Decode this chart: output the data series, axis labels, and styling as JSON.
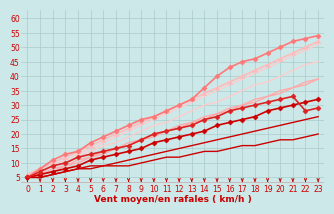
{
  "xlabel": "Vent moyen/en rafales ( km/h )",
  "background_color": "#cce8e8",
  "grid_color": "#aacccc",
  "text_color": "#cc0000",
  "x_ticks": [
    0,
    1,
    2,
    3,
    4,
    5,
    6,
    7,
    8,
    9,
    10,
    11,
    12,
    13,
    14,
    15,
    16,
    17,
    18,
    19,
    20,
    21,
    22,
    23
  ],
  "y_ticks": [
    5,
    10,
    15,
    20,
    25,
    30,
    35,
    40,
    45,
    50,
    55,
    60
  ],
  "xlim": [
    -0.5,
    23.5
  ],
  "ylim": [
    3,
    63
  ],
  "lines": [
    {
      "x": [
        0,
        1,
        2,
        3,
        4,
        5,
        6,
        7,
        8,
        9,
        10,
        11,
        12,
        13,
        14,
        15,
        16,
        17,
        18,
        19,
        20,
        21,
        22,
        23
      ],
      "y": [
        5,
        6,
        7,
        9,
        10,
        12,
        13,
        15,
        16,
        18,
        19,
        21,
        22,
        24,
        25,
        27,
        28,
        30,
        31,
        33,
        34,
        36,
        37,
        39
      ],
      "color": "#ffaaaa",
      "lw": 1.0,
      "marker": null
    },
    {
      "x": [
        0,
        1,
        2,
        3,
        4,
        5,
        6,
        7,
        8,
        9,
        10,
        11,
        12,
        13,
        14,
        15,
        16,
        17,
        18,
        19,
        20,
        21,
        22,
        23
      ],
      "y": [
        5,
        6,
        8,
        9,
        11,
        12,
        14,
        15,
        17,
        18,
        20,
        21,
        23,
        24,
        26,
        27,
        29,
        30,
        32,
        33,
        35,
        36,
        38,
        39
      ],
      "color": "#ffaaaa",
      "lw": 1.0,
      "marker": null
    },
    {
      "x": [
        0,
        1,
        2,
        3,
        4,
        5,
        6,
        7,
        8,
        9,
        10,
        11,
        12,
        13,
        14,
        15,
        16,
        17,
        18,
        19,
        20,
        21,
        22,
        23
      ],
      "y": [
        5,
        7,
        9,
        10,
        12,
        14,
        16,
        17,
        19,
        21,
        23,
        24,
        26,
        28,
        30,
        31,
        33,
        35,
        37,
        38,
        40,
        42,
        44,
        45
      ],
      "color": "#ffcccc",
      "lw": 1.0,
      "marker": null
    },
    {
      "x": [
        0,
        1,
        2,
        3,
        4,
        5,
        6,
        7,
        8,
        9,
        10,
        11,
        12,
        13,
        14,
        15,
        16,
        17,
        18,
        19,
        20,
        21,
        22,
        23
      ],
      "y": [
        5,
        7,
        9,
        11,
        13,
        15,
        17,
        19,
        21,
        23,
        25,
        27,
        29,
        31,
        33,
        35,
        37,
        39,
        41,
        43,
        45,
        47,
        49,
        51
      ],
      "color": "#ffcccc",
      "lw": 1.0,
      "marker": null
    },
    {
      "x": [
        0,
        1,
        2,
        3,
        4,
        5,
        6,
        7,
        8,
        9,
        10,
        11,
        12,
        13,
        14,
        15,
        16,
        17,
        18,
        19,
        20,
        21,
        22,
        23
      ],
      "y": [
        6,
        8,
        10,
        12,
        14,
        16,
        18,
        20,
        22,
        24,
        26,
        28,
        30,
        32,
        34,
        36,
        38,
        40,
        42,
        44,
        46,
        48,
        50,
        52
      ],
      "color": "#ffbbbb",
      "lw": 1.2,
      "marker": "^",
      "ms": 3
    },
    {
      "x": [
        0,
        1,
        2,
        3,
        4,
        5,
        6,
        7,
        8,
        9,
        10,
        11,
        12,
        13,
        14,
        15,
        16,
        17,
        18,
        19,
        20,
        21,
        22,
        23
      ],
      "y": [
        5,
        8,
        11,
        13,
        14,
        17,
        19,
        21,
        23,
        25,
        26,
        28,
        30,
        32,
        36,
        40,
        43,
        45,
        46,
        48,
        50,
        52,
        53,
        54
      ],
      "color": "#ff7777",
      "lw": 1.2,
      "marker": "D",
      "ms": 2.5
    },
    {
      "x": [
        0,
        1,
        2,
        3,
        4,
        5,
        6,
        7,
        8,
        9,
        10,
        11,
        12,
        13,
        14,
        15,
        16,
        17,
        18,
        19,
        20,
        21,
        22,
        23
      ],
      "y": [
        5,
        5,
        6,
        7,
        8,
        8,
        9,
        9,
        9,
        10,
        11,
        12,
        12,
        13,
        14,
        14,
        15,
        16,
        16,
        17,
        18,
        18,
        19,
        20
      ],
      "color": "#cc0000",
      "lw": 1.0,
      "marker": null
    },
    {
      "x": [
        0,
        1,
        2,
        3,
        4,
        5,
        6,
        7,
        8,
        9,
        10,
        11,
        12,
        13,
        14,
        15,
        16,
        17,
        18,
        19,
        20,
        21,
        22,
        23
      ],
      "y": [
        5,
        5,
        6,
        7,
        8,
        9,
        9,
        10,
        11,
        12,
        13,
        14,
        15,
        16,
        17,
        18,
        19,
        20,
        21,
        22,
        23,
        24,
        25,
        26
      ],
      "color": "#cc0000",
      "lw": 1.0,
      "marker": null
    },
    {
      "x": [
        0,
        1,
        2,
        3,
        4,
        5,
        6,
        7,
        8,
        9,
        10,
        11,
        12,
        13,
        14,
        15,
        16,
        17,
        18,
        19,
        20,
        21,
        22,
        23
      ],
      "y": [
        5,
        6,
        7,
        8,
        9,
        11,
        12,
        13,
        14,
        15,
        17,
        18,
        19,
        20,
        21,
        23,
        24,
        25,
        26,
        28,
        29,
        30,
        31,
        32
      ],
      "color": "#cc0000",
      "lw": 1.2,
      "marker": "D",
      "ms": 2.5
    },
    {
      "x": [
        0,
        1,
        2,
        3,
        4,
        5,
        6,
        7,
        8,
        9,
        10,
        11,
        12,
        13,
        14,
        15,
        16,
        17,
        18,
        19,
        20,
        21,
        22,
        23
      ],
      "y": [
        5,
        7,
        9,
        10,
        12,
        13,
        14,
        15,
        16,
        18,
        20,
        21,
        22,
        23,
        25,
        26,
        28,
        29,
        30,
        31,
        32,
        33,
        28,
        29
      ],
      "color": "#dd2222",
      "lw": 1.2,
      "marker": "D",
      "ms": 2.5
    }
  ],
  "arrow_color": "#cc0000",
  "axis_fontsize": 6.5,
  "tick_fontsize": 5.5
}
